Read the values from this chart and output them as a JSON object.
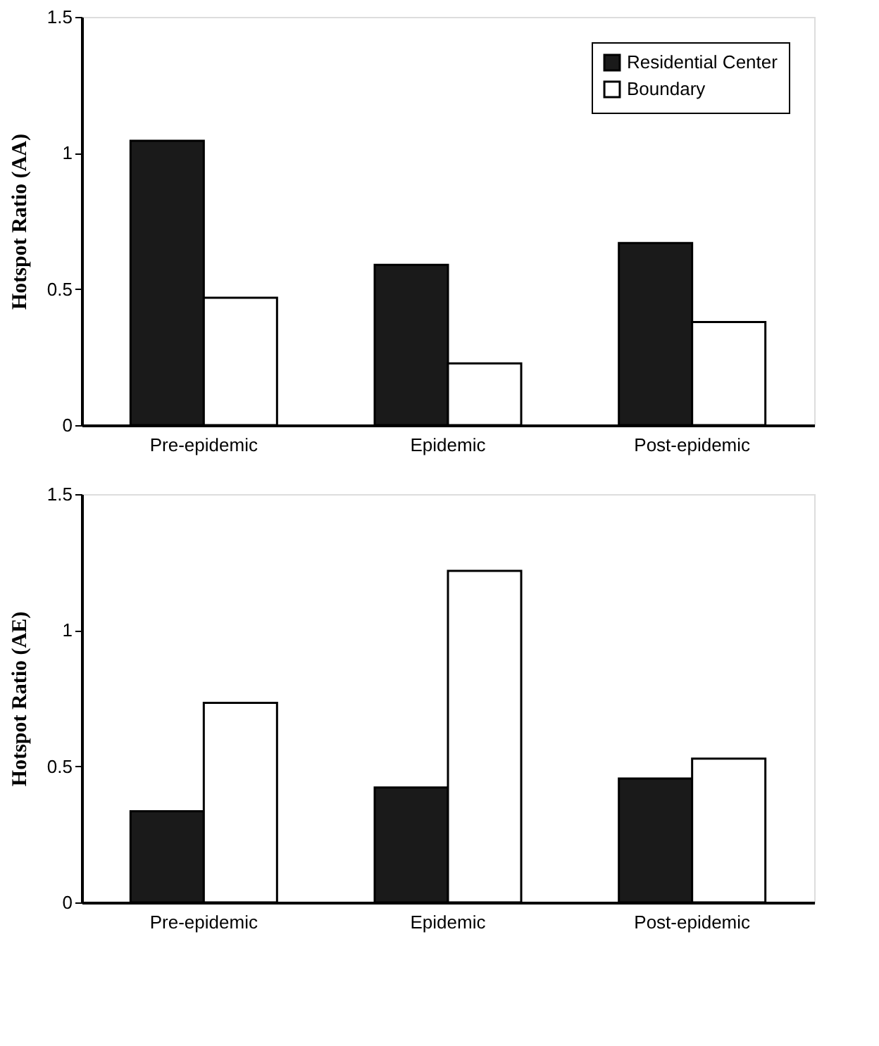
{
  "chart_data": [
    {
      "type": "bar",
      "ylabel": "Hotspot  Ratio (AA)",
      "categories": [
        "Pre-epidemic",
        "Epidemic",
        "Post-epidemic"
      ],
      "ylim": [
        0,
        1.5
      ],
      "yticks": [
        0,
        0.5,
        1,
        1.5
      ],
      "grid": false,
      "legend": "top right",
      "series": [
        {
          "name": "Residential Center",
          "color": "#1a1a1a",
          "values": [
            1.045,
            0.589,
            0.669
          ]
        },
        {
          "name": "Boundary",
          "color": "#ffffff",
          "values": [
            0.468,
            0.227,
            0.379
          ]
        }
      ]
    },
    {
      "type": "bar",
      "ylabel": "Hotspot  Ratio (AE)",
      "categories": [
        "Pre-epidemic",
        "Epidemic",
        "Post-epidemic"
      ],
      "ylim": [
        0,
        1.5
      ],
      "yticks": [
        0,
        0.5,
        1,
        1.5
      ],
      "grid": false,
      "legend": "top right",
      "series": [
        {
          "name": "Residential Center",
          "color": "#1a1a1a",
          "values": [
            0.335,
            0.422,
            0.455
          ]
        },
        {
          "name": "Boundary",
          "color": "#ffffff",
          "values": [
            0.733,
            1.218,
            0.528
          ]
        }
      ]
    }
  ]
}
